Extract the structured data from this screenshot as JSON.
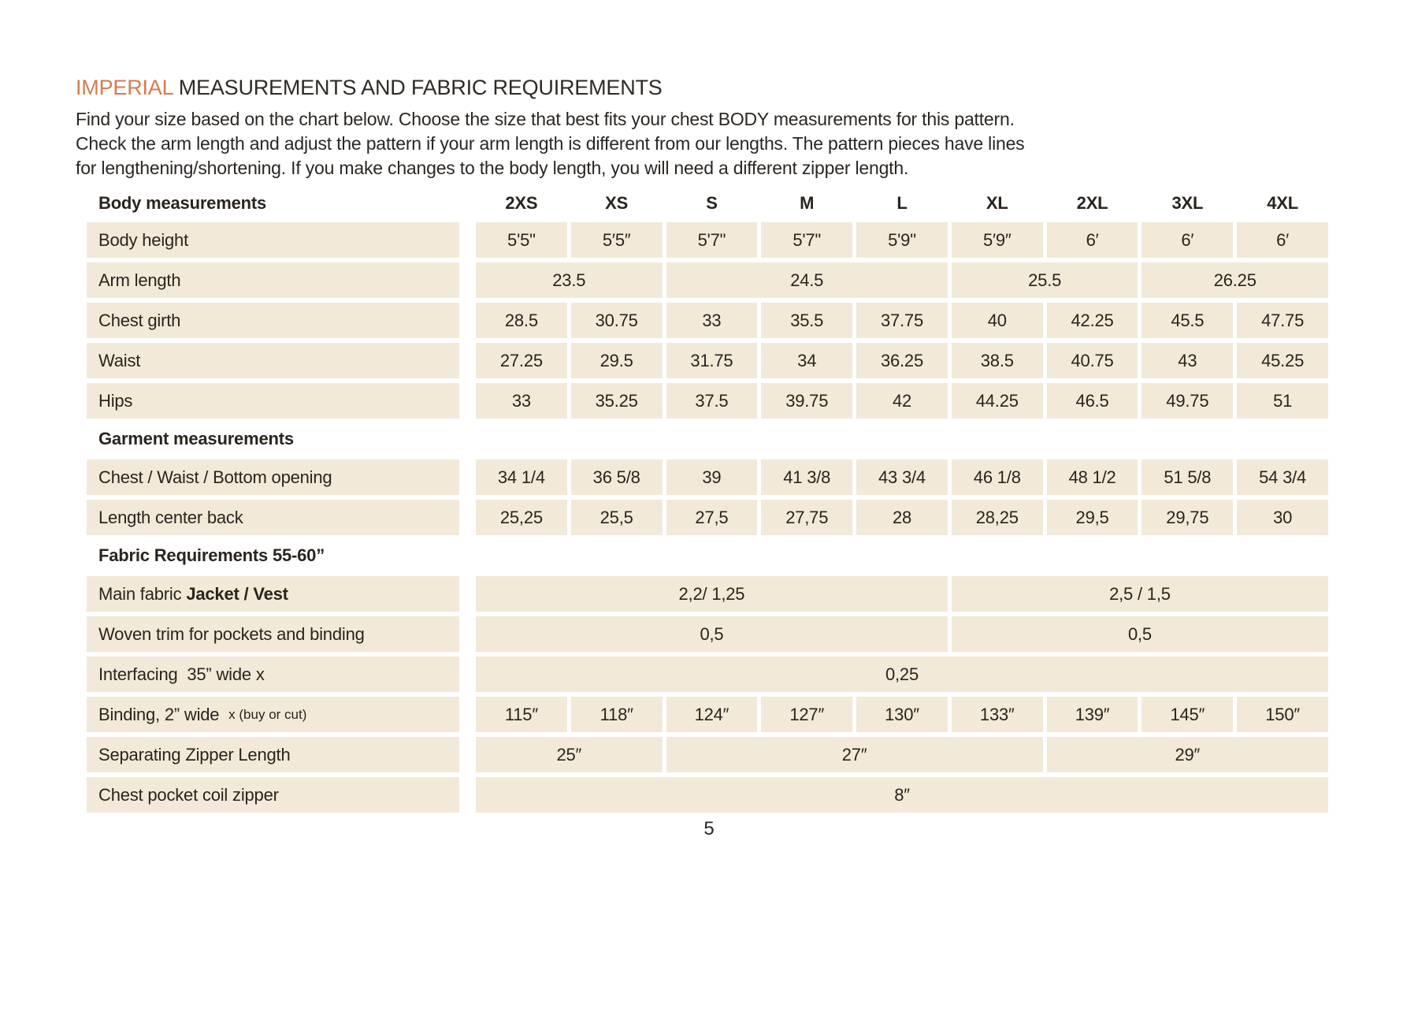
{
  "page": {
    "number": "5"
  },
  "colors": {
    "accent_orange": "#D87A4E",
    "cell_beige": "#F2E9D8",
    "text_dark": "#29241F"
  },
  "header": {
    "title_accent": "IMPERIAL",
    "title_rest": " MEASUREMENTS AND FABRIC REQUIREMENTS",
    "intro_lines": [
      "Find your size based on the chart below. Choose the size that best fits your chest BODY measurements for this pattern.",
      "Check the arm length and adjust the pattern if your arm length is different from our lengths. The pattern pieces have lines",
      "for lengthening/shortening. If you make changes to the body length, you will need a different zipper length."
    ]
  },
  "table": {
    "size_header": {
      "label": "Body measurements",
      "sizes": [
        "2XS",
        "XS",
        "S",
        "M",
        "L",
        "XL",
        "2XL",
        "3XL",
        "4XL"
      ]
    },
    "body": [
      {
        "type": "row",
        "label_parts": [
          {
            "text": "Body height",
            "style": "normal"
          }
        ],
        "cells": [
          {
            "value": "5'5\"",
            "span": 1
          },
          {
            "value": "5′5″",
            "span": 1
          },
          {
            "value": "5'7\"",
            "span": 1
          },
          {
            "value": "5'7\"",
            "span": 1
          },
          {
            "value": "5'9\"",
            "span": 1
          },
          {
            "value": "5′9″",
            "span": 1
          },
          {
            "value": "6′",
            "span": 1
          },
          {
            "value": "6′",
            "span": 1
          },
          {
            "value": "6′",
            "span": 1
          }
        ]
      },
      {
        "type": "row",
        "label_parts": [
          {
            "text": "Arm length",
            "style": "normal"
          }
        ],
        "cells": [
          {
            "value": "23.5",
            "span": 2
          },
          {
            "value": "24.5",
            "span": 3
          },
          {
            "value": "25.5",
            "span": 2
          },
          {
            "value": "26.25",
            "span": 2
          }
        ]
      },
      {
        "type": "row",
        "label_parts": [
          {
            "text": "Chest girth",
            "style": "normal"
          }
        ],
        "cells": [
          {
            "value": "28.5",
            "span": 1
          },
          {
            "value": "30.75",
            "span": 1
          },
          {
            "value": "33",
            "span": 1
          },
          {
            "value": "35.5",
            "span": 1
          },
          {
            "value": "37.75",
            "span": 1
          },
          {
            "value": "40",
            "span": 1
          },
          {
            "value": "42.25",
            "span": 1
          },
          {
            "value": "45.5",
            "span": 1
          },
          {
            "value": "47.75",
            "span": 1
          }
        ]
      },
      {
        "type": "row",
        "label_parts": [
          {
            "text": "Waist",
            "style": "normal"
          }
        ],
        "cells": [
          {
            "value": "27.25",
            "span": 1
          },
          {
            "value": "29.5",
            "span": 1
          },
          {
            "value": "31.75",
            "span": 1
          },
          {
            "value": "34",
            "span": 1
          },
          {
            "value": "36.25",
            "span": 1
          },
          {
            "value": "38.5",
            "span": 1
          },
          {
            "value": "40.75",
            "span": 1
          },
          {
            "value": "43",
            "span": 1
          },
          {
            "value": "45.25",
            "span": 1
          }
        ]
      },
      {
        "type": "row",
        "label_parts": [
          {
            "text": "Hips",
            "style": "normal"
          }
        ],
        "cells": [
          {
            "value": "33",
            "span": 1
          },
          {
            "value": "35.25",
            "span": 1
          },
          {
            "value": "37.5",
            "span": 1
          },
          {
            "value": "39.75",
            "span": 1
          },
          {
            "value": "42",
            "span": 1
          },
          {
            "value": "44.25",
            "span": 1
          },
          {
            "value": "46.5",
            "span": 1
          },
          {
            "value": "49.75",
            "span": 1
          },
          {
            "value": "51",
            "span": 1
          }
        ]
      },
      {
        "type": "section",
        "label": "Garment measurements"
      },
      {
        "type": "row",
        "label_parts": [
          {
            "text": "Chest / Waist / Bottom opening",
            "style": "normal"
          }
        ],
        "cells": [
          {
            "value": "34 1/4",
            "span": 1
          },
          {
            "value": "36 5/8",
            "span": 1
          },
          {
            "value": "39",
            "span": 1
          },
          {
            "value": "41 3/8",
            "span": 1
          },
          {
            "value": "43 3/4",
            "span": 1
          },
          {
            "value": "46 1/8",
            "span": 1
          },
          {
            "value": "48 1/2",
            "span": 1
          },
          {
            "value": "51 5/8",
            "span": 1
          },
          {
            "value": "54 3/4",
            "span": 1
          }
        ]
      },
      {
        "type": "row",
        "label_parts": [
          {
            "text": "Length center back",
            "style": "normal"
          }
        ],
        "cells": [
          {
            "value": "25,25",
            "span": 1
          },
          {
            "value": "25,5",
            "span": 1
          },
          {
            "value": "27,5",
            "span": 1
          },
          {
            "value": "27,75",
            "span": 1
          },
          {
            "value": "28",
            "span": 1
          },
          {
            "value": "28,25",
            "span": 1
          },
          {
            "value": "29,5",
            "span": 1
          },
          {
            "value": "29,75",
            "span": 1
          },
          {
            "value": "30",
            "span": 1
          }
        ]
      },
      {
        "type": "section",
        "label": "Fabric Requirements 55-60”"
      },
      {
        "type": "row",
        "label_parts": [
          {
            "text": "Main fabric ",
            "style": "normal"
          },
          {
            "text": "Jacket / Vest",
            "style": "bold"
          }
        ],
        "cells": [
          {
            "value": "2,2/ 1,25",
            "span": 5
          },
          {
            "value": "2,5 / 1,5",
            "span": 4
          }
        ]
      },
      {
        "type": "row",
        "label_parts": [
          {
            "text": "Woven trim for pockets and binding",
            "style": "normal"
          }
        ],
        "cells": [
          {
            "value": "0,5",
            "span": 5
          },
          {
            "value": "0,5",
            "span": 4
          }
        ]
      },
      {
        "type": "row",
        "label_parts": [
          {
            "text": "Interfacing  35” wide x",
            "style": "normal"
          }
        ],
        "cells": [
          {
            "value": "0,25",
            "span": 9
          }
        ]
      },
      {
        "type": "row",
        "label_parts": [
          {
            "text": "Binding, 2” wide  ",
            "style": "normal"
          },
          {
            "text": "x (buy or cut)",
            "style": "small"
          }
        ],
        "cells": [
          {
            "value": "115″",
            "span": 1
          },
          {
            "value": "118″",
            "span": 1
          },
          {
            "value": "124″",
            "span": 1
          },
          {
            "value": "127″",
            "span": 1
          },
          {
            "value": "130″",
            "span": 1
          },
          {
            "value": "133″",
            "span": 1
          },
          {
            "value": "139″",
            "span": 1
          },
          {
            "value": "145″",
            "span": 1
          },
          {
            "value": "150″",
            "span": 1
          }
        ]
      },
      {
        "type": "row",
        "label_parts": [
          {
            "text": "Separating Zipper Length",
            "style": "normal"
          }
        ],
        "cells": [
          {
            "value": "25″",
            "span": 2
          },
          {
            "value": "27″",
            "span": 4
          },
          {
            "value": "29″",
            "span": 3
          }
        ]
      },
      {
        "type": "row",
        "label_parts": [
          {
            "text": "Chest pocket coil zipper",
            "style": "normal"
          }
        ],
        "cells": [
          {
            "value": "8″",
            "span": 9
          }
        ]
      }
    ]
  }
}
